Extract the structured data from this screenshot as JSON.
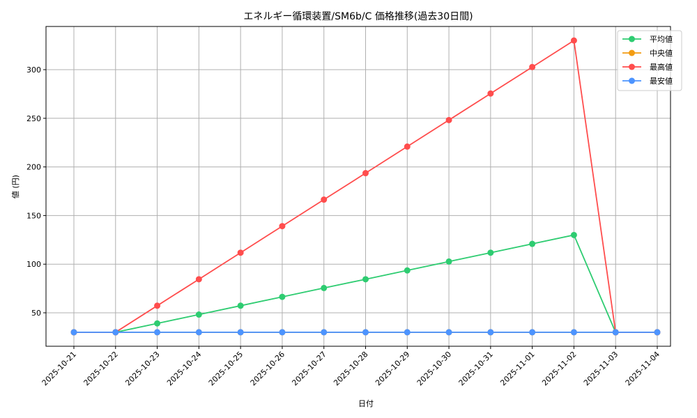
{
  "chart_data": {
    "type": "line",
    "title": "エネルギー循環装置/SM6b/C 価格推移(過去30日間)",
    "xlabel": "日付",
    "ylabel": "値 (円)",
    "categories": [
      "2025-10-21",
      "2025-10-22",
      "2025-10-23",
      "2025-10-24",
      "2025-10-25",
      "2025-10-26",
      "2025-10-27",
      "2025-10-28",
      "2025-10-29",
      "2025-10-30",
      "2025-10-31",
      "2025-11-01",
      "2025-11-02",
      "2025-11-03",
      "2025-11-04"
    ],
    "series": [
      {
        "name": "平均値",
        "color": "#2ecc71",
        "values": [
          30,
          30,
          39.1,
          48.2,
          57.3,
          66.4,
          75.5,
          84.5,
          93.6,
          102.7,
          111.8,
          120.9,
          130,
          30,
          30
        ]
      },
      {
        "name": "中央値",
        "color": "#f39c12",
        "values": [
          30,
          30,
          30,
          30,
          30,
          30,
          30,
          30,
          30,
          30,
          30,
          30,
          30,
          30,
          30
        ]
      },
      {
        "name": "最高値",
        "color": "#ff4d4d",
        "values": [
          30,
          30,
          57.3,
          84.5,
          111.8,
          139.1,
          166.4,
          193.6,
          220.9,
          248.2,
          275.5,
          302.7,
          330,
          30,
          30
        ]
      },
      {
        "name": "最安値",
        "color": "#4d94ff",
        "values": [
          30,
          30,
          30,
          30,
          30,
          30,
          30,
          30,
          30,
          30,
          30,
          30,
          30,
          30,
          30
        ]
      }
    ],
    "yticks": [
      50,
      100,
      150,
      200,
      250,
      300
    ],
    "ylim": [
      15,
      345
    ],
    "grid": true,
    "legend_position": "upper right"
  }
}
